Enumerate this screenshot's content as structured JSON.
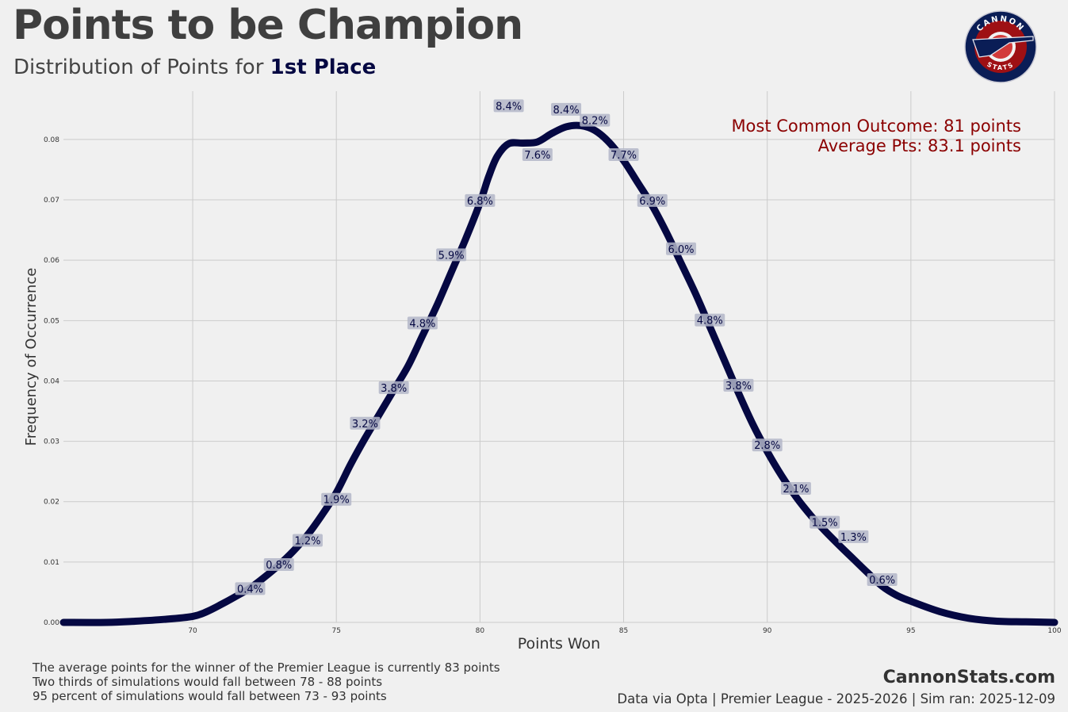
{
  "header": {
    "title": "Points to be Champion",
    "subtitle_prefix": "Distribution of Points for ",
    "subtitle_highlight": "1st Place"
  },
  "logo": {
    "top_text": "CANNON",
    "bottom_text": "STATS"
  },
  "annotations": {
    "most_common": "Most Common Outcome: 81 points",
    "average": "Average Pts: 83.1 points"
  },
  "footer": {
    "lines": [
      "The average points for the winner of the Premier League is currently 83 points",
      "Two thirds of simulations would fall between 78 - 88 points",
      "95 percent of simulations would fall between 73 - 93 points"
    ],
    "brand": "CannonStats.com",
    "source": "Data via Opta | Premier League - 2025-2026 | Sim ran: 2025-12-09"
  },
  "colors": {
    "line": "#050842",
    "annotation": "#8b0000",
    "label_bg": "#b3b6c8"
  },
  "chart_data": {
    "type": "line",
    "title": "Points to be Champion",
    "xlabel": "Points Won",
    "ylabel": "Frequency of Occurrence",
    "xlim": [
      65.5,
      100
    ],
    "ylim": [
      0,
      0.088
    ],
    "xticks": [
      70,
      75,
      80,
      85,
      90,
      95,
      100
    ],
    "xtick_labels": [
      "70",
      "75",
      "80",
      "85",
      "90",
      "95",
      "100"
    ],
    "yticks": [
      0,
      0.01,
      0.02,
      0.03,
      0.04,
      0.05,
      0.06,
      0.07,
      0.08
    ],
    "ytick_labels": [
      "0.00",
      "0.01",
      "0.02",
      "0.03",
      "0.04",
      "0.05",
      "0.06",
      "0.07",
      "0.08"
    ],
    "grid": true,
    "curve": {
      "x": [
        65.5,
        67,
        68,
        69,
        70,
        70.5,
        71,
        71.5,
        72,
        72.5,
        73,
        73.5,
        74,
        74.5,
        75,
        75.5,
        76,
        76.5,
        77,
        77.5,
        78,
        78.5,
        79,
        79.5,
        80,
        80.3,
        80.6,
        81,
        81.5,
        82,
        82.5,
        83,
        83.5,
        84,
        84.5,
        85,
        85.5,
        86,
        86.5,
        87,
        87.5,
        88,
        88.5,
        89,
        89.5,
        90,
        90.5,
        91,
        91.5,
        92,
        92.5,
        93,
        93.5,
        94,
        94.5,
        95,
        96,
        97,
        98,
        99,
        100
      ],
      "y": [
        0.0,
        0.0,
        0.0002,
        0.0005,
        0.001,
        0.0018,
        0.003,
        0.0043,
        0.0057,
        0.0075,
        0.0095,
        0.0118,
        0.0145,
        0.0178,
        0.0215,
        0.0262,
        0.0305,
        0.0345,
        0.0385,
        0.0425,
        0.0475,
        0.0525,
        0.058,
        0.0635,
        0.0695,
        0.0738,
        0.0772,
        0.0793,
        0.0794,
        0.0796,
        0.081,
        0.0821,
        0.0823,
        0.0815,
        0.0795,
        0.0765,
        0.0728,
        0.069,
        0.0645,
        0.0595,
        0.0545,
        0.049,
        0.0435,
        0.038,
        0.0328,
        0.0283,
        0.0243,
        0.0208,
        0.0178,
        0.0152,
        0.0128,
        0.0105,
        0.0082,
        0.006,
        0.0045,
        0.0035,
        0.0018,
        0.0007,
        0.0002,
        0.0001,
        0.0
      ]
    },
    "point_labels": [
      {
        "x": 72,
        "y": 0.0052,
        "label": "0.4%"
      },
      {
        "x": 73,
        "y": 0.0092,
        "label": "0.8%"
      },
      {
        "x": 74,
        "y": 0.0132,
        "label": "1.2%"
      },
      {
        "x": 75,
        "y": 0.02,
        "label": "1.9%"
      },
      {
        "x": 76,
        "y": 0.0326,
        "label": "3.2%"
      },
      {
        "x": 77,
        "y": 0.0385,
        "label": "3.8%"
      },
      {
        "x": 78,
        "y": 0.0492,
        "label": "4.8%"
      },
      {
        "x": 79,
        "y": 0.0605,
        "label": "5.9%"
      },
      {
        "x": 80,
        "y": 0.0695,
        "label": "6.8%"
      },
      {
        "x": 81,
        "y": 0.0852,
        "label": "8.4%"
      },
      {
        "x": 82,
        "y": 0.0771,
        "label": "7.6%"
      },
      {
        "x": 83,
        "y": 0.0846,
        "label": "8.4%"
      },
      {
        "x": 84,
        "y": 0.0828,
        "label": "8.2%"
      },
      {
        "x": 85,
        "y": 0.0771,
        "label": "7.7%"
      },
      {
        "x": 86,
        "y": 0.0695,
        "label": "6.9%"
      },
      {
        "x": 87,
        "y": 0.0615,
        "label": "6.0%"
      },
      {
        "x": 88,
        "y": 0.0497,
        "label": "4.8%"
      },
      {
        "x": 89,
        "y": 0.0389,
        "label": "3.8%"
      },
      {
        "x": 90,
        "y": 0.029,
        "label": "2.8%"
      },
      {
        "x": 91,
        "y": 0.0218,
        "label": "2.1%"
      },
      {
        "x": 92,
        "y": 0.0162,
        "label": "1.5%"
      },
      {
        "x": 93,
        "y": 0.0138,
        "label": "1.3%"
      },
      {
        "x": 94,
        "y": 0.0067,
        "label": "0.6%"
      }
    ]
  }
}
